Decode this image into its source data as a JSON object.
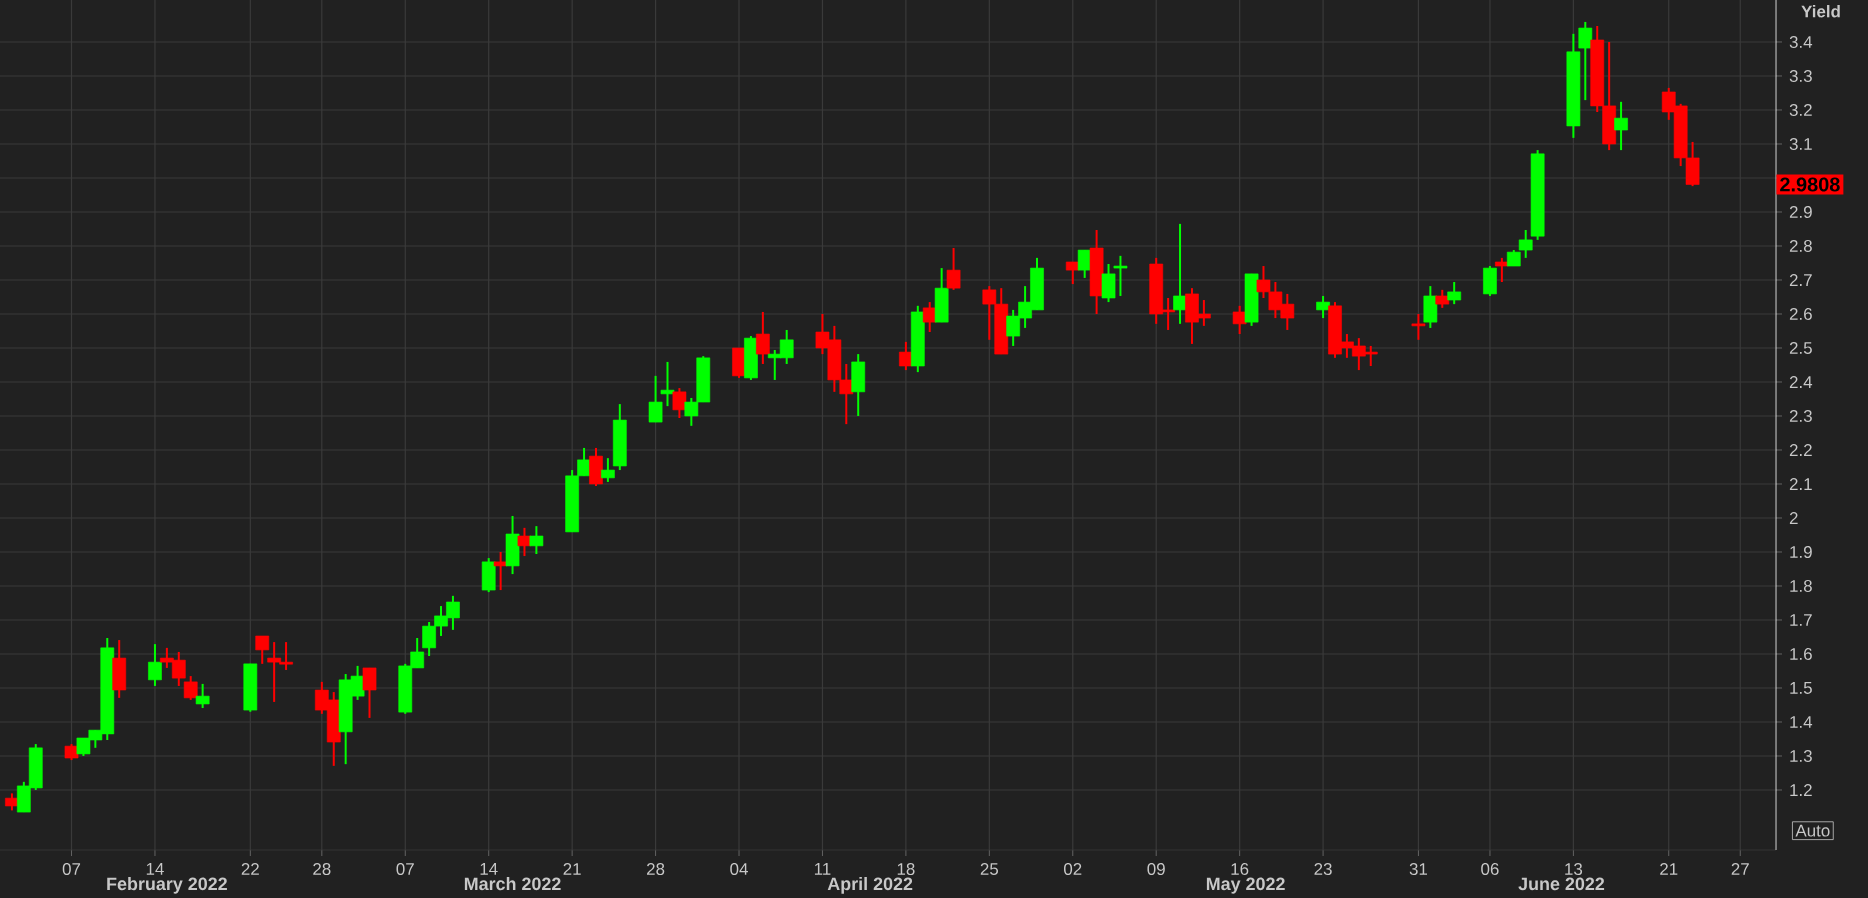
{
  "chart_data": {
    "type": "candlestick",
    "ylabel": "Yield",
    "x": [
      "2022-02-02",
      "2022-02-03",
      "2022-02-04",
      "2022-02-07",
      "2022-02-08",
      "2022-02-09",
      "2022-02-10",
      "2022-02-11",
      "2022-02-14",
      "2022-02-15",
      "2022-02-16",
      "2022-02-17",
      "2022-02-18",
      "2022-02-22",
      "2022-02-23",
      "2022-02-24",
      "2022-02-25",
      "2022-02-28",
      "2022-03-01",
      "2022-03-02",
      "2022-03-03",
      "2022-03-04",
      "2022-03-07",
      "2022-03-08",
      "2022-03-09",
      "2022-03-10",
      "2022-03-11",
      "2022-03-14",
      "2022-03-15",
      "2022-03-16",
      "2022-03-17",
      "2022-03-18",
      "2022-03-21",
      "2022-03-22",
      "2022-03-23",
      "2022-03-24",
      "2022-03-25",
      "2022-03-28",
      "2022-03-29",
      "2022-03-30",
      "2022-03-31",
      "2022-04-01",
      "2022-04-04",
      "2022-04-05",
      "2022-04-06",
      "2022-04-07",
      "2022-04-08",
      "2022-04-11",
      "2022-04-12",
      "2022-04-13",
      "2022-04-14",
      "2022-04-18",
      "2022-04-19",
      "2022-04-20",
      "2022-04-21",
      "2022-04-22",
      "2022-04-25",
      "2022-04-26",
      "2022-04-27",
      "2022-04-28",
      "2022-04-29",
      "2022-05-02",
      "2022-05-03",
      "2022-05-04",
      "2022-05-05",
      "2022-05-06",
      "2022-05-09",
      "2022-05-10",
      "2022-05-11",
      "2022-05-12",
      "2022-05-13",
      "2022-05-16",
      "2022-05-17",
      "2022-05-18",
      "2022-05-19",
      "2022-05-20",
      "2022-05-23",
      "2022-05-24",
      "2022-05-25",
      "2022-05-26",
      "2022-05-27",
      "2022-05-31",
      "2022-06-01",
      "2022-06-02",
      "2022-06-03",
      "2022-06-06",
      "2022-06-07",
      "2022-06-08",
      "2022-06-09",
      "2022-06-10",
      "2022-06-13",
      "2022-06-14",
      "2022-06-15",
      "2022-06-16",
      "2022-06-17",
      "2022-06-21",
      "2022-06-22",
      "2022-06-23"
    ],
    "ohlc": [
      [
        1.176,
        1.19,
        1.14,
        1.153
      ],
      [
        1.135,
        1.224,
        1.135,
        1.212
      ],
      [
        1.206,
        1.335,
        1.2,
        1.324
      ],
      [
        1.329,
        1.335,
        1.288,
        1.294
      ],
      [
        1.306,
        1.353,
        1.3,
        1.353
      ],
      [
        1.347,
        1.376,
        1.324,
        1.376
      ],
      [
        1.365,
        1.647,
        1.347,
        1.618
      ],
      [
        1.588,
        1.641,
        1.471,
        1.494
      ],
      [
        1.524,
        1.629,
        1.506,
        1.576
      ],
      [
        1.588,
        1.618,
        1.559,
        1.576
      ],
      [
        1.582,
        1.606,
        1.506,
        1.529
      ],
      [
        1.518,
        1.535,
        1.465,
        1.471
      ],
      [
        1.453,
        1.512,
        1.441,
        1.476
      ],
      [
        1.435,
        1.571,
        1.43,
        1.571
      ],
      [
        1.653,
        1.653,
        1.571,
        1.612
      ],
      [
        1.588,
        1.635,
        1.459,
        1.576
      ],
      [
        1.576,
        1.635,
        1.553,
        1.57
      ],
      [
        1.494,
        1.518,
        1.424,
        1.435
      ],
      [
        1.465,
        1.488,
        1.271,
        1.341
      ],
      [
        1.371,
        1.541,
        1.276,
        1.524
      ],
      [
        1.476,
        1.565,
        1.465,
        1.535
      ],
      [
        1.559,
        1.559,
        1.412,
        1.494
      ],
      [
        1.429,
        1.571,
        1.424,
        1.565
      ],
      [
        1.559,
        1.647,
        1.559,
        1.606
      ],
      [
        1.618,
        1.694,
        1.594,
        1.682
      ],
      [
        1.682,
        1.741,
        1.653,
        1.712
      ],
      [
        1.706,
        1.771,
        1.671,
        1.753
      ],
      [
        1.788,
        1.882,
        1.782,
        1.871
      ],
      [
        1.871,
        1.9,
        1.788,
        1.859
      ],
      [
        1.859,
        2.006,
        1.835,
        1.953
      ],
      [
        1.947,
        1.971,
        1.888,
        1.918
      ],
      [
        1.918,
        1.976,
        1.894,
        1.947
      ],
      [
        1.959,
        2.141,
        1.959,
        2.124
      ],
      [
        2.124,
        2.206,
        2.124,
        2.171
      ],
      [
        2.182,
        2.206,
        2.094,
        2.1
      ],
      [
        2.118,
        2.176,
        2.106,
        2.141
      ],
      [
        2.153,
        2.335,
        2.141,
        2.288
      ],
      [
        2.282,
        2.418,
        2.282,
        2.341
      ],
      [
        2.365,
        2.459,
        2.329,
        2.376
      ],
      [
        2.371,
        2.382,
        2.294,
        2.318
      ],
      [
        2.3,
        2.353,
        2.271,
        2.341
      ],
      [
        2.341,
        2.476,
        2.341,
        2.471
      ],
      [
        2.5,
        2.5,
        2.412,
        2.418
      ],
      [
        2.412,
        2.535,
        2.406,
        2.529
      ],
      [
        2.541,
        2.606,
        2.453,
        2.482
      ],
      [
        2.471,
        2.494,
        2.406,
        2.482
      ],
      [
        2.471,
        2.553,
        2.453,
        2.524
      ],
      [
        2.547,
        2.6,
        2.482,
        2.5
      ],
      [
        2.524,
        2.565,
        2.371,
        2.406
      ],
      [
        2.406,
        2.453,
        2.276,
        2.365
      ],
      [
        2.371,
        2.482,
        2.3,
        2.459
      ],
      [
        2.488,
        2.518,
        2.435,
        2.447
      ],
      [
        2.447,
        2.624,
        2.429,
        2.606
      ],
      [
        2.618,
        2.635,
        2.547,
        2.576
      ],
      [
        2.576,
        2.735,
        2.576,
        2.676
      ],
      [
        2.729,
        2.794,
        2.671,
        2.676
      ],
      [
        2.671,
        2.682,
        2.524,
        2.629
      ],
      [
        2.629,
        2.676,
        2.482,
        2.482
      ],
      [
        2.535,
        2.612,
        2.506,
        2.594
      ],
      [
        2.588,
        2.682,
        2.559,
        2.635
      ],
      [
        2.612,
        2.765,
        2.612,
        2.735
      ],
      [
        2.753,
        2.753,
        2.688,
        2.729
      ],
      [
        2.729,
        2.788,
        2.706,
        2.788
      ],
      [
        2.794,
        2.847,
        2.6,
        2.653
      ],
      [
        2.647,
        2.747,
        2.635,
        2.718
      ],
      [
        2.735,
        2.771,
        2.653,
        2.741
      ],
      [
        2.747,
        2.765,
        2.571,
        2.6
      ],
      [
        2.612,
        2.647,
        2.553,
        2.606
      ],
      [
        2.612,
        2.865,
        2.571,
        2.653
      ],
      [
        2.659,
        2.676,
        2.512,
        2.576
      ],
      [
        2.6,
        2.641,
        2.565,
        2.588
      ],
      [
        2.606,
        2.624,
        2.541,
        2.571
      ],
      [
        2.576,
        2.718,
        2.565,
        2.718
      ],
      [
        2.7,
        2.741,
        2.647,
        2.665
      ],
      [
        2.665,
        2.694,
        2.588,
        2.612
      ],
      [
        2.629,
        2.659,
        2.553,
        2.588
      ],
      [
        2.612,
        2.653,
        2.588,
        2.635
      ],
      [
        2.624,
        2.635,
        2.471,
        2.482
      ],
      [
        2.518,
        2.541,
        2.471,
        2.5
      ],
      [
        2.506,
        2.529,
        2.435,
        2.476
      ],
      [
        2.488,
        2.506,
        2.447,
        2.482
      ],
      [
        2.571,
        2.6,
        2.524,
        2.565
      ],
      [
        2.576,
        2.682,
        2.559,
        2.653
      ],
      [
        2.653,
        2.671,
        2.618,
        2.629
      ],
      [
        2.641,
        2.694,
        2.629,
        2.665
      ],
      [
        2.659,
        2.741,
        2.653,
        2.735
      ],
      [
        2.753,
        2.765,
        2.694,
        2.741
      ],
      [
        2.741,
        2.788,
        2.741,
        2.782
      ],
      [
        2.788,
        2.847,
        2.765,
        2.818
      ],
      [
        2.829,
        3.082,
        2.818,
        3.071
      ],
      [
        3.153,
        3.424,
        3.118,
        3.371
      ],
      [
        3.382,
        3.459,
        3.229,
        3.441
      ],
      [
        3.406,
        3.447,
        3.194,
        3.212
      ],
      [
        3.212,
        3.4,
        3.082,
        3.1
      ],
      [
        3.141,
        3.224,
        3.082,
        3.176
      ],
      [
        3.253,
        3.265,
        3.171,
        3.194
      ],
      [
        3.212,
        3.218,
        3.035,
        3.059
      ],
      [
        3.059,
        3.106,
        2.976,
        2.9808
      ]
    ],
    "colors": [
      "#ff0000",
      "#00ff00",
      "#00ff00",
      "#ff0000",
      "#00ff00",
      "#00ff00",
      "#00ff00",
      "#ff0000",
      "#00ff00",
      "#ff0000",
      "#ff0000",
      "#ff0000",
      "#00ff00",
      "#00ff00",
      "#ff0000",
      "#ff0000",
      "#ff0000",
      "#ff0000",
      "#ff0000",
      "#00ff00",
      "#00ff00",
      "#ff0000",
      "#00ff00",
      "#00ff00",
      "#00ff00",
      "#00ff00",
      "#00ff00",
      "#00ff00",
      "#ff0000",
      "#00ff00",
      "#ff0000",
      "#00ff00",
      "#00ff00",
      "#00ff00",
      "#ff0000",
      "#00ff00",
      "#00ff00",
      "#00ff00",
      "#00ff00",
      "#ff0000",
      "#00ff00",
      "#00ff00",
      "#ff0000",
      "#00ff00",
      "#ff0000",
      "#00ff00",
      "#00ff00",
      "#ff0000",
      "#ff0000",
      "#ff0000",
      "#00ff00",
      "#ff0000",
      "#00ff00",
      "#ff0000",
      "#00ff00",
      "#ff0000",
      "#ff0000",
      "#ff0000",
      "#00ff00",
      "#00ff00",
      "#00ff00",
      "#ff0000",
      "#00ff00",
      "#ff0000",
      "#00ff00",
      "#00ff00",
      "#ff0000",
      "#ff0000",
      "#00ff00",
      "#ff0000",
      "#ff0000",
      "#ff0000",
      "#00ff00",
      "#ff0000",
      "#ff0000",
      "#ff0000",
      "#00ff00",
      "#ff0000",
      "#ff0000",
      "#ff0000",
      "#ff0000",
      "#ff0000",
      "#00ff00",
      "#ff0000",
      "#00ff00",
      "#00ff00",
      "#ff0000",
      "#00ff00",
      "#00ff00",
      "#00ff00",
      "#00ff00",
      "#00ff00",
      "#ff0000",
      "#ff0000",
      "#00ff00",
      "#ff0000",
      "#ff0000",
      "#ff0000"
    ],
    "xlim": [
      "2022-02-01",
      "2022-06-30"
    ],
    "xticks": [
      {
        "value": "2022-02-07",
        "label": "07"
      },
      {
        "value": "2022-02-14",
        "label": "14"
      },
      {
        "value": "2022-02-22",
        "label": "22"
      },
      {
        "value": "2022-02-28",
        "label": "28"
      },
      {
        "value": "2022-03-07",
        "label": "07"
      },
      {
        "value": "2022-03-14",
        "label": "14"
      },
      {
        "value": "2022-03-21",
        "label": "21"
      },
      {
        "value": "2022-03-28",
        "label": "28"
      },
      {
        "value": "2022-04-04",
        "label": "04"
      },
      {
        "value": "2022-04-11",
        "label": "11"
      },
      {
        "value": "2022-04-18",
        "label": "18"
      },
      {
        "value": "2022-04-25",
        "label": "25"
      },
      {
        "value": "2022-05-02",
        "label": "02"
      },
      {
        "value": "2022-05-09",
        "label": "09"
      },
      {
        "value": "2022-05-16",
        "label": "16"
      },
      {
        "value": "2022-05-23",
        "label": "23"
      },
      {
        "value": "2022-05-31",
        "label": "31"
      },
      {
        "value": "2022-06-06",
        "label": "06"
      },
      {
        "value": "2022-06-13",
        "label": "13"
      },
      {
        "value": "2022-06-21",
        "label": "21"
      },
      {
        "value": "2022-06-27",
        "label": "27"
      }
    ],
    "ylim": [
      1.0235,
      3.5235
    ],
    "yticks": [
      1.2,
      1.3,
      1.4,
      1.5,
      1.6,
      1.7,
      1.8,
      1.9,
      2,
      2.1,
      2.2,
      2.3,
      2.4,
      2.5,
      2.6,
      2.7,
      2.8,
      2.9,
      {
        "value": 3,
        "label": null
      },
      3.1,
      3.2,
      3.3,
      3.4
    ],
    "grid": true,
    "annotations": [
      "February 2022",
      "March 2022",
      "April 2022",
      "May 2022",
      "June 2022",
      "Auto",
      {
        "text": "2.9808",
        "y": 2.9808
      }
    ]
  }
}
